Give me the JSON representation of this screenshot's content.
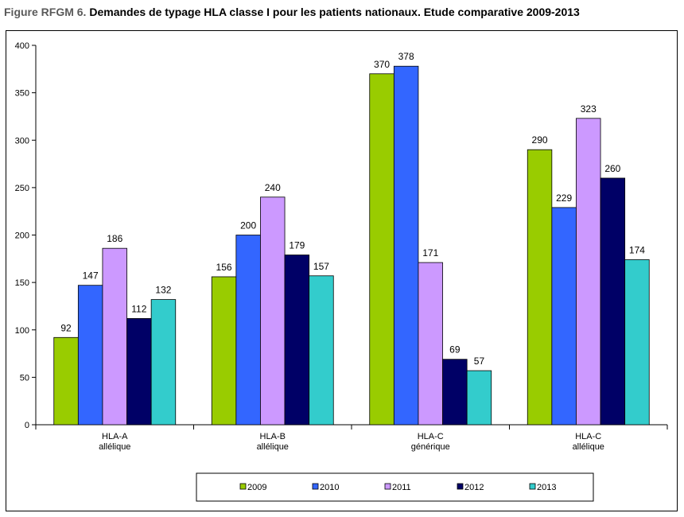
{
  "figure": {
    "label": "Figure RFGM 6.",
    "title": "Demandes de typage HLA classe I pour les patients nationaux. Etude comparative 2009-2013"
  },
  "chart_data": {
    "type": "bar",
    "categories": [
      [
        "HLA-A",
        "allélique"
      ],
      [
        "HLA-B",
        "allélique"
      ],
      [
        "HLA-C",
        "générique"
      ],
      [
        "HLA-C",
        "allélique"
      ]
    ],
    "series": [
      {
        "name": "2009",
        "color": "#99CC00",
        "values": [
          92,
          156,
          370,
          290
        ]
      },
      {
        "name": "2010",
        "color": "#3366FF",
        "values": [
          147,
          200,
          378,
          229
        ]
      },
      {
        "name": "2011",
        "color": "#CC99FF",
        "values": [
          186,
          240,
          171,
          323
        ]
      },
      {
        "name": "2012",
        "color": "#000066",
        "values": [
          112,
          179,
          69,
          260
        ]
      },
      {
        "name": "2013",
        "color": "#33CCCC",
        "values": [
          132,
          157,
          57,
          174
        ]
      }
    ],
    "ylim": [
      0,
      400
    ],
    "yticks": [
      0,
      50,
      100,
      150,
      200,
      250,
      300,
      350,
      400
    ],
    "grid": false,
    "data_labels": true,
    "legend_position": "bottom"
  }
}
